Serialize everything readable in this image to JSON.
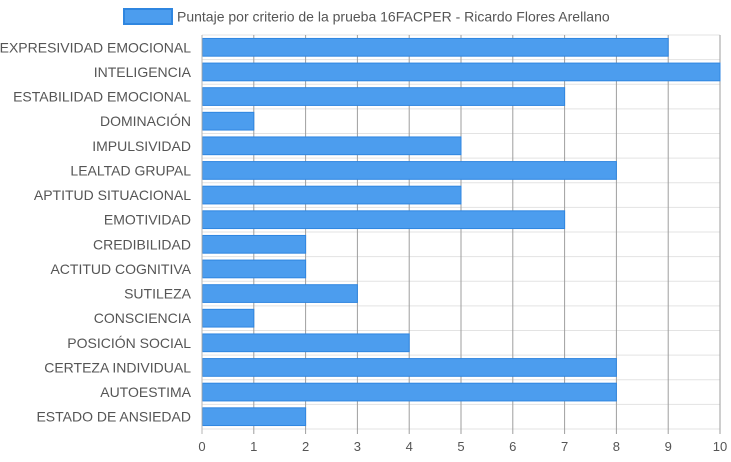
{
  "colors": {
    "bar_fill": "#4c9dee",
    "bar_stroke": "#2f86e0",
    "grid": "#e3e3e3",
    "axis": "#b5b5b5",
    "text": "#555555"
  },
  "chart_data": {
    "type": "bar",
    "orientation": "horizontal",
    "title": "",
    "xlabel": "",
    "ylabel": "",
    "xlim": [
      0,
      10
    ],
    "x_ticks": [
      "0",
      "1",
      "2",
      "3",
      "4",
      "5",
      "6",
      "7",
      "8",
      "9",
      "10"
    ],
    "grid": true,
    "legend_position": "top",
    "categories": [
      "EXPRESIVIDAD EMOCIONAL",
      "INTELIGENCIA",
      "ESTABILIDAD EMOCIONAL",
      "DOMINACIÓN",
      "IMPULSIVIDAD",
      "LEALTAD GRUPAL",
      "APTITUD SITUACIONAL",
      "EMOTIVIDAD",
      "CREDIBILIDAD",
      "ACTITUD COGNITIVA",
      "SUTILEZA",
      "CONSCIENCIA",
      "POSICIÓN SOCIAL",
      "CERTEZA INDIVIDUAL",
      "AUTOESTIMA",
      "ESTADO DE ANSIEDAD"
    ],
    "series": [
      {
        "name": "Puntaje por criterio de la prueba 16FACPER - Ricardo Flores Arellano",
        "values": [
          9,
          10,
          7,
          1,
          5,
          8,
          5,
          7,
          2,
          2,
          3,
          1,
          4,
          8,
          8,
          2
        ]
      }
    ]
  }
}
